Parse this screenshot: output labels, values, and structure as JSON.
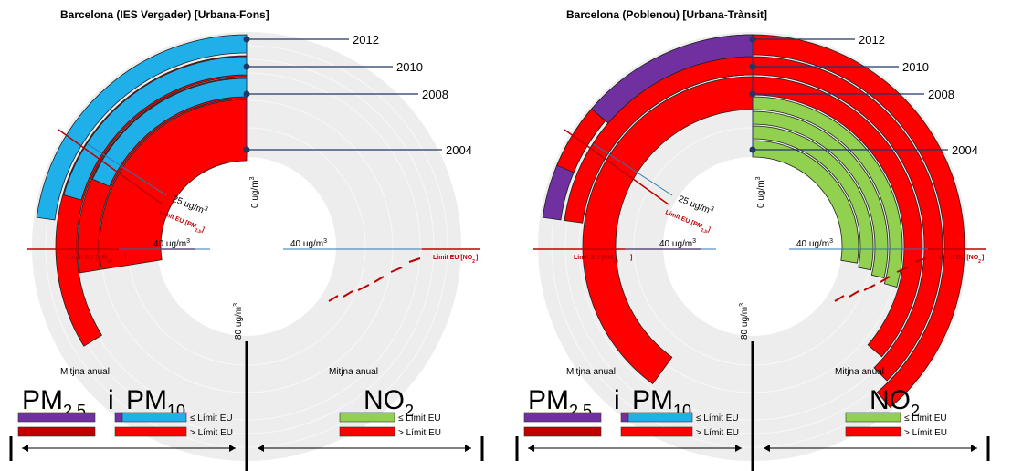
{
  "colors": {
    "pm_good": "#1fb0ea",
    "pm_pm25_good": "#7030a0",
    "pm_bad": "#ff0000",
    "pm_bad_dark": "#c00000",
    "no2_good": "#92d050",
    "no2_bad": "#ff0000",
    "year_line": "#1f3864",
    "bg_ring": "#ededed"
  },
  "chart_data": [
    {
      "type": "radial-bar",
      "title": "Barcelona (IES Vergader)   [Urbana-Fons]",
      "years": [
        "2012",
        "2010",
        "2008",
        "2004"
      ],
      "pm10": [
        null,
        54,
        44,
        44
      ],
      "pm25": [
        null,
        26,
        25,
        25
      ],
      "no2": [
        null,
        null,
        null,
        null
      ],
      "pm25_limit": 25,
      "pm10_limit": 40,
      "no2_limit": 40,
      "axis_labels": {
        "zero": "0 ug/m",
        "eighty": "80 ug/m",
        "pm25_limit_value": "25 ug/m",
        "pm10_limit_value": "40 ug/m",
        "no2_limit_value": "40 ug/m",
        "pm25_limit_name": "Límit EU [PM",
        "pm10_limit_name": "Límit EU [PM",
        "no2_limit_name": "Límit EU [NO"
      }
    },
    {
      "type": "radial-bar",
      "title": "Barcelona (Poblenou)   [Urbana-Trànsit]",
      "years": [
        "2012",
        "2010",
        "2008",
        "2004"
      ],
      "pm10": [
        44,
        44,
        54,
        54
      ],
      "pm25": [
        null,
        26,
        26,
        26
      ],
      "no2": [
        58,
        58,
        64,
        66
      ],
      "pm25_limit": 25,
      "pm10_limit": 40,
      "no2_limit": 40,
      "axis_labels": {
        "zero": "0 ug/m",
        "eighty": "80 ug/m",
        "pm25_limit_value": "25 ug/m",
        "pm10_limit_value": "40 ug/m",
        "no2_limit_value": "40 ug/m",
        "pm25_limit_name": "Límit EU [PM",
        "pm10_limit_name": "Límit EU [PM",
        "no2_limit_name": "Límit EU [NO"
      }
    }
  ],
  "legend": {
    "mitjna": "Mitjna anual",
    "pm": "PM",
    "sub25": "2,5",
    "conj": "i",
    "sub10": "10",
    "no": "NO",
    "sub2": "2",
    "sup3": "3",
    "le": "≤ Límit EU",
    "gt": "> Límit EU"
  }
}
